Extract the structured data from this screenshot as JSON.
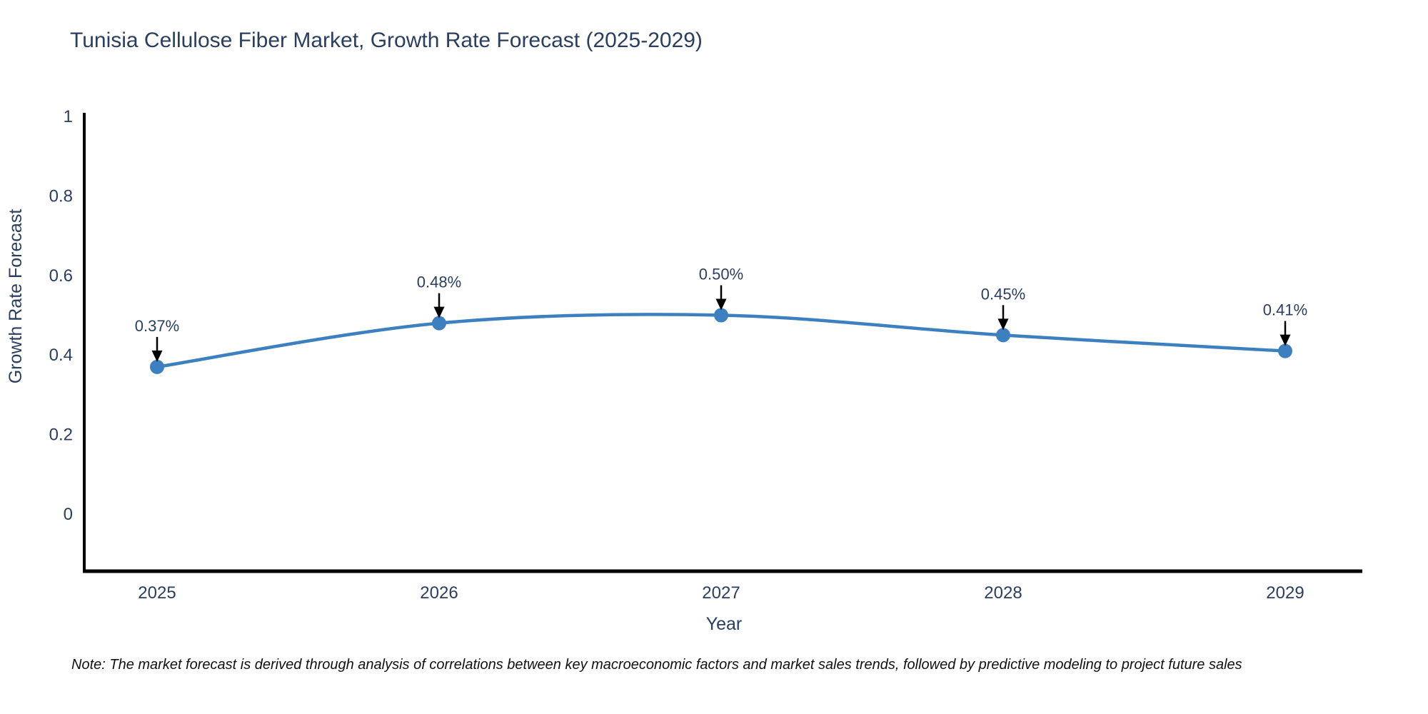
{
  "title": "Tunisia Cellulose Fiber Market, Growth Rate Forecast (2025-2029)",
  "note": "Note: The market forecast is derived through analysis of correlations between key macroeconomic factors and market sales trends, followed by predictive modeling to project future sales",
  "chart_data": {
    "type": "line",
    "title": "Tunisia Cellulose Fiber Market, Growth Rate Forecast (2025-2029)",
    "xlabel": "Year",
    "ylabel": "Growth Rate Forecast",
    "x": [
      2025,
      2026,
      2027,
      2028,
      2029
    ],
    "values": [
      0.37,
      0.48,
      0.5,
      0.45,
      0.41
    ],
    "point_labels": [
      "0.37%",
      "0.48%",
      "0.50%",
      "0.45%",
      "0.41%"
    ],
    "x_tick_labels": [
      "2025",
      "2026",
      "2027",
      "2028",
      "2029"
    ],
    "y_ticks": [
      0,
      0.2,
      0.4,
      0.6,
      0.8,
      1
    ],
    "y_tick_labels": [
      "0",
      "0.2",
      "0.4",
      "0.6",
      "0.8",
      "1"
    ],
    "ylim": [
      -0.14,
      1.0
    ],
    "grid": false,
    "legend_position": "none",
    "line_shape": "spline",
    "colors": {
      "line": "#3d80bf",
      "marker": "#3d80bf",
      "axis_line": "#000000",
      "annotation_arrow": "#000000",
      "text": "#2a3f5f",
      "background": "#ffffff"
    }
  }
}
